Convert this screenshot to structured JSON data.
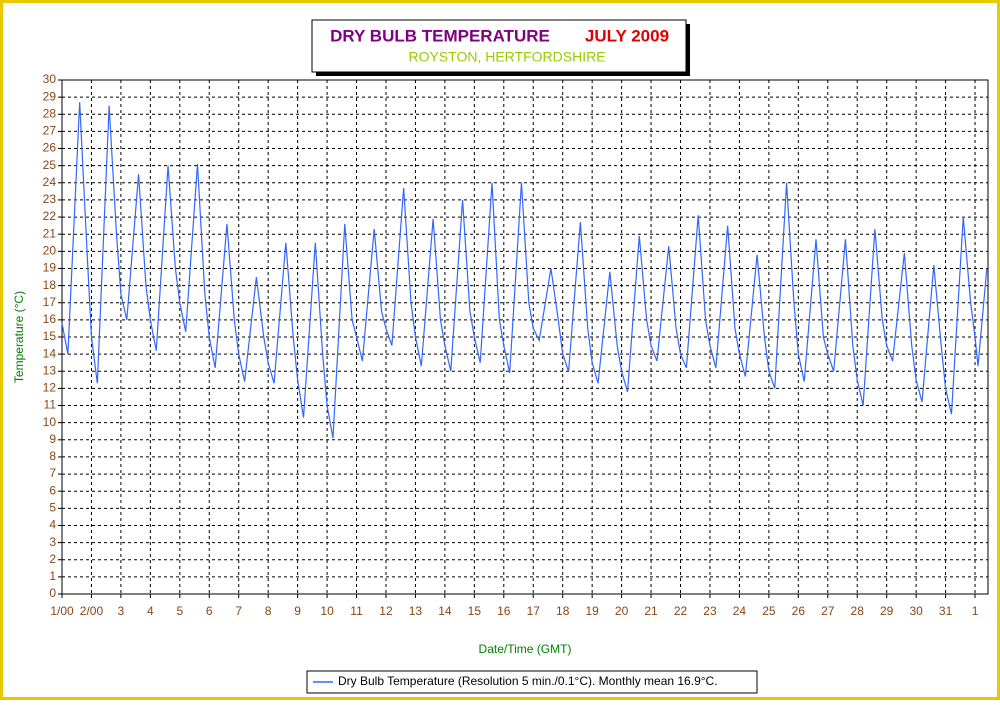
{
  "chart_data": {
    "type": "line",
    "title": "DRY BULB TEMPERATURE",
    "title_month": "JULY 2009",
    "subtitle": "ROYSTON, HERTFORDSHIRE",
    "xlabel": "Date/Time (GMT)",
    "ylabel": "Temperature (°C)",
    "grid": true,
    "legend": "bottom",
    "xlim": [
      1,
      32.44
    ],
    "ylim": [
      0,
      30
    ],
    "yticks": [
      0,
      1,
      2,
      3,
      4,
      5,
      6,
      7,
      8,
      9,
      10,
      11,
      12,
      13,
      14,
      15,
      16,
      17,
      18,
      19,
      20,
      21,
      22,
      23,
      24,
      25,
      26,
      27,
      28,
      29,
      30
    ],
    "xticks": [
      {
        "value": 1,
        "label": "1/00"
      },
      {
        "value": 2,
        "label": "2/00"
      },
      3,
      4,
      5,
      6,
      7,
      8,
      9,
      10,
      11,
      12,
      13,
      14,
      15,
      16,
      17,
      18,
      19,
      20,
      21,
      22,
      23,
      24,
      25,
      26,
      27,
      28,
      29,
      30,
      31,
      {
        "value": 32,
        "label": "1"
      }
    ],
    "x": [
      1,
      1.2,
      1.6,
      1.85,
      2,
      2.2,
      2.6,
      2.85,
      3,
      3.2,
      3.6,
      3.85,
      4,
      4.2,
      4.6,
      4.85,
      5,
      5.2,
      5.6,
      5.85,
      6,
      6.2,
      6.6,
      6.85,
      7,
      7.2,
      7.6,
      7.85,
      8,
      8.2,
      8.6,
      8.85,
      9,
      9.2,
      9.6,
      9.85,
      10,
      10.2,
      10.6,
      10.85,
      11,
      11.2,
      11.6,
      11.85,
      12,
      12.2,
      12.6,
      12.85,
      13,
      13.2,
      13.6,
      13.85,
      14,
      14.2,
      14.6,
      14.85,
      15,
      15.2,
      15.6,
      15.85,
      16,
      16.2,
      16.6,
      16.85,
      17,
      17.2,
      17.6,
      17.85,
      18,
      18.2,
      18.6,
      18.85,
      19,
      19.2,
      19.6,
      19.85,
      20,
      20.2,
      20.6,
      20.85,
      21,
      21.2,
      21.6,
      21.85,
      22,
      22.2,
      22.6,
      22.85,
      23,
      23.2,
      23.6,
      23.85,
      24,
      24.2,
      24.6,
      24.85,
      25,
      25.2,
      25.6,
      25.85,
      26,
      26.2,
      26.6,
      26.85,
      27,
      27.2,
      27.6,
      27.85,
      28,
      28.2,
      28.6,
      28.85,
      29,
      29.2,
      29.6,
      29.85,
      30,
      30.2,
      30.6,
      30.85,
      31,
      31.2,
      31.6,
      31.85,
      32,
      32.1,
      32.4
    ],
    "series": [
      {
        "name": "Dry Bulb Temperature (Resolution 5 min./0.1°C). Monthly mean 16.9°C.",
        "color": "#3366ff",
        "values": [
          15.8,
          14.0,
          28.7,
          20,
          15,
          12.3,
          28.5,
          21,
          17.5,
          16.0,
          24.5,
          18,
          16,
          14.2,
          25.0,
          19,
          17,
          15.3,
          25.1,
          17.5,
          15,
          13.2,
          21.6,
          16,
          14,
          12.4,
          18.5,
          15,
          13.5,
          12.3,
          20.5,
          15,
          12.5,
          10.3,
          20.5,
          14,
          11,
          9.1,
          21.6,
          16,
          15,
          13.6,
          21.3,
          16.5,
          15.5,
          14.5,
          23.7,
          17,
          15,
          13.3,
          21.9,
          16,
          14.5,
          13.0,
          23.0,
          16.5,
          15,
          13.5,
          24.0,
          16,
          14.5,
          12.9,
          24.0,
          17,
          15.5,
          14.8,
          19.0,
          16,
          14,
          13.0,
          21.7,
          15.5,
          13.5,
          12.3,
          18.8,
          14.5,
          13,
          11.8,
          20.9,
          16,
          14.5,
          13.6,
          20.3,
          15.5,
          14,
          13.2,
          22.1,
          16,
          14.5,
          13.2,
          21.5,
          15.5,
          14,
          12.7,
          19.8,
          15,
          13,
          12.0,
          24.0,
          17,
          14,
          12.4,
          20.7,
          15,
          14,
          13.0,
          20.7,
          14.5,
          12.5,
          11.0,
          21.3,
          16,
          14.5,
          13.6,
          19.9,
          14.5,
          12.5,
          11.2,
          19.2,
          14.5,
          12,
          10.5,
          22.0,
          17,
          15,
          13.3,
          19.0
        ]
      }
    ]
  }
}
